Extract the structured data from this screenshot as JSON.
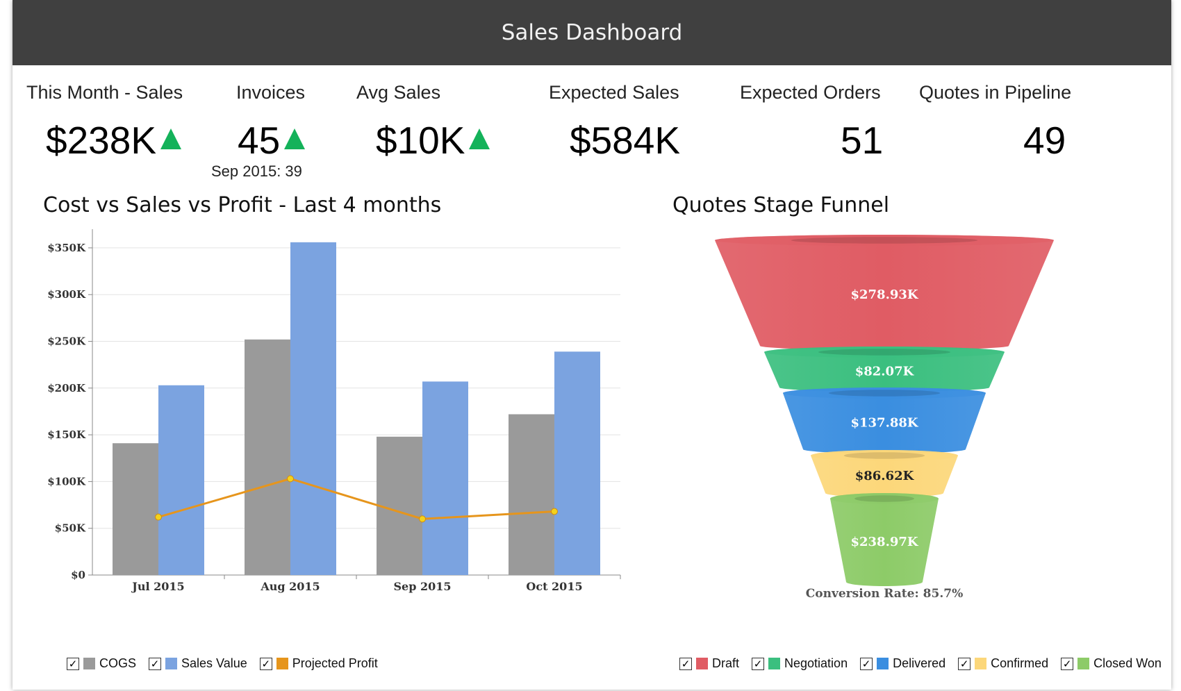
{
  "header": {
    "title": "Sales Dashboard"
  },
  "kpis": [
    {
      "label": "This Month - Sales",
      "value": "$238K",
      "trend": "up"
    },
    {
      "label": "Invoices",
      "value": "45",
      "trend": "up",
      "sub": "Sep 2015: 39"
    },
    {
      "label": "Avg Sales",
      "value": "$10K",
      "trend": "up"
    },
    {
      "label": "Expected Sales",
      "value": "$584K"
    },
    {
      "label": "Expected Orders",
      "value": "51"
    },
    {
      "label": "Quotes in Pipeline",
      "value": "49"
    }
  ],
  "bar_title": "Cost vs Sales vs Profit - Last 4 months",
  "funnel_title": "Quotes Stage Funnel",
  "funnel_footer": "Conversion Rate: 85.7%",
  "check_glyph": "✓",
  "colors": {
    "cogs": "#9a9a9a",
    "sales": "#7ba3e0",
    "profit": "#e6951c",
    "draft": "#e05c64",
    "negotiation": "#3bbf7f",
    "delivered": "#3a8ee0",
    "confirmed": "#fcd77a",
    "closed_won": "#8dcb68",
    "up_arrow": "#14b25a",
    "header_bg": "#404040"
  },
  "chart_data": [
    {
      "type": "bar",
      "title": "Cost vs Sales vs Profit - Last 4 months",
      "categories": [
        "Jul 2015",
        "Aug 2015",
        "Sep 2015",
        "Oct 2015"
      ],
      "series": [
        {
          "name": "COGS",
          "kind": "bar",
          "color": "#9a9a9a",
          "values": [
            141000,
            252000,
            148000,
            172000
          ]
        },
        {
          "name": "Sales Value",
          "kind": "bar",
          "color": "#7ba3e0",
          "values": [
            203000,
            356000,
            207000,
            239000
          ]
        },
        {
          "name": "Projected Profit",
          "kind": "line",
          "color": "#e6951c",
          "values": [
            62000,
            103000,
            60000,
            68000
          ]
        }
      ],
      "ylim": [
        0,
        370000
      ],
      "yticks": [
        0,
        50000,
        100000,
        150000,
        200000,
        250000,
        300000,
        350000
      ],
      "ytick_labels": [
        "$0",
        "$50K",
        "$100K",
        "$150K",
        "$200K",
        "$250K",
        "$300K",
        "$350K"
      ],
      "grid": true,
      "legend": "bottom"
    },
    {
      "type": "funnel",
      "title": "Quotes Stage Funnel",
      "stages": [
        {
          "name": "Draft",
          "value": 278.93,
          "label": "$278.93K",
          "color": "#e05c64",
          "text_color": "#ffffff"
        },
        {
          "name": "Negotiation",
          "value": 82.07,
          "label": "$82.07K",
          "color": "#3bbf7f",
          "text_color": "#ffffff"
        },
        {
          "name": "Delivered",
          "value": 137.88,
          "label": "$137.88K",
          "color": "#3a8ee0",
          "text_color": "#ffffff"
        },
        {
          "name": "Confirmed",
          "value": 86.62,
          "label": "$86.62K",
          "color": "#fcd77a",
          "text_color": "#222222"
        },
        {
          "name": "Closed Won",
          "value": 238.97,
          "label": "$238.97K",
          "color": "#8dcb68",
          "text_color": "#ffffff"
        }
      ],
      "footer": "Conversion Rate: 85.7%",
      "legend": "bottom"
    }
  ]
}
